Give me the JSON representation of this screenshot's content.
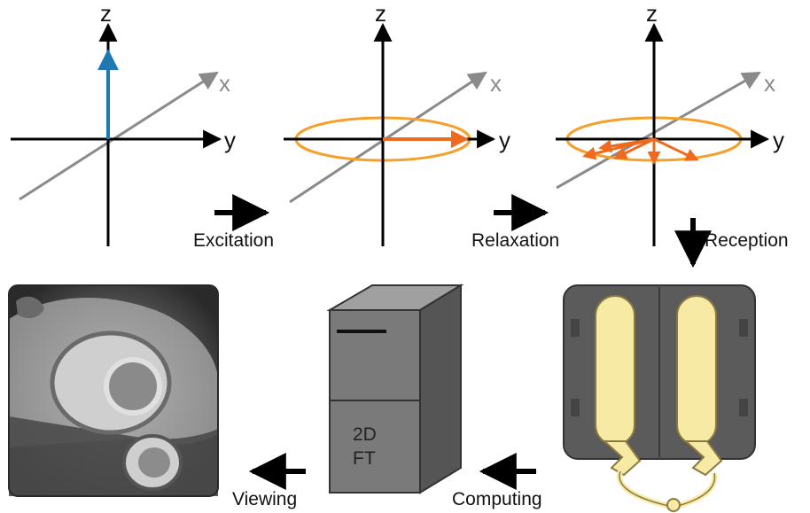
{
  "axes": {
    "z": "z",
    "y": "y",
    "x": "x"
  },
  "steps": {
    "excitation": "Excitation",
    "relaxation": "Relaxation",
    "reception": "Reception",
    "computing": "Computing",
    "viewing": "Viewing"
  },
  "computer": {
    "line1": "2D",
    "line2": "FT"
  },
  "colors": {
    "magnetization": "#1f77b4",
    "precession_orbit": "#f5a02a",
    "spin_vectors": "#ee6a1e",
    "x_axis": "#8a8a8a",
    "coil_housing": "#5b5b5b",
    "coil_conductor": "#f7eaa4",
    "computer_body": "#7a7a7a"
  },
  "icons": [
    "coordinate-axes",
    "receive-coil",
    "computer-tower",
    "mri-heart-image"
  ]
}
